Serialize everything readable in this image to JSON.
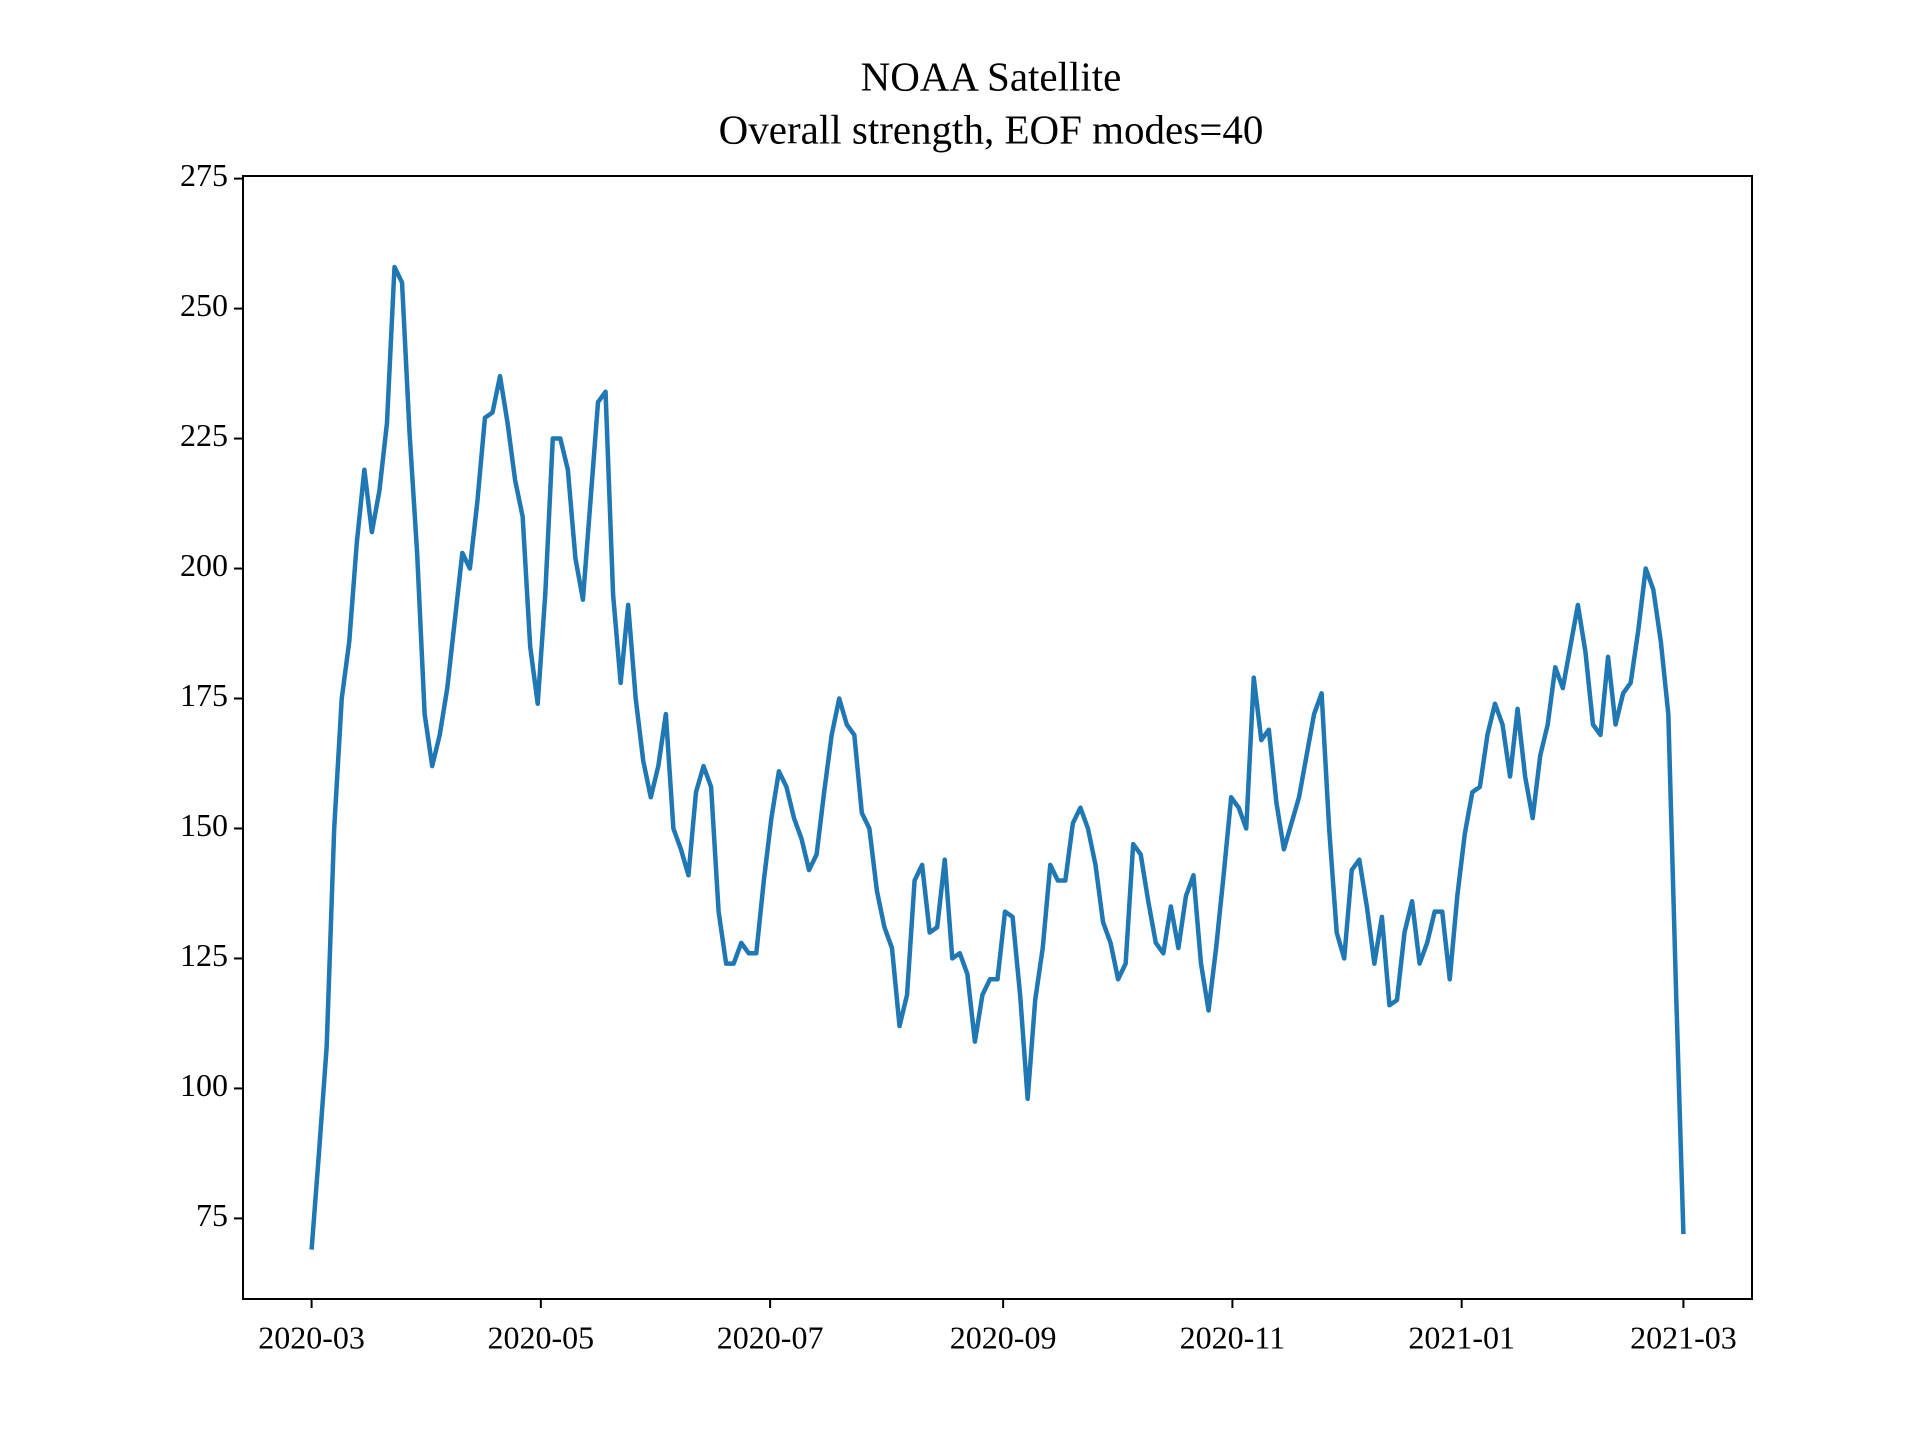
{
  "chart_data": {
    "type": "line",
    "title": "NOAA Satellite",
    "subtitle": "Overall strength, EOF modes=40",
    "xlim": [
      "2020-03",
      "2021-03"
    ],
    "xticks": [
      "2020-03",
      "2020-05",
      "2020-07",
      "2020-09",
      "2020-11",
      "2021-01",
      "2021-03"
    ],
    "ylim": [
      59.5,
      275.5
    ],
    "yticks": [
      75,
      100,
      125,
      150,
      175,
      200,
      225,
      250,
      275
    ],
    "grid": false,
    "series": [
      {
        "name": "Overall strength",
        "color": "#1f77b4",
        "values": [
          69,
          88,
          108,
          150,
          175,
          186,
          205,
          219,
          207,
          215,
          228,
          258,
          255,
          226,
          203,
          172,
          162,
          168,
          177,
          190,
          203,
          200,
          213,
          229,
          230,
          237,
          228,
          217,
          210,
          185,
          174,
          195,
          225,
          225,
          219,
          202,
          194,
          213,
          232,
          234,
          195,
          178,
          193,
          175,
          163,
          156,
          162,
          172,
          150,
          146,
          141,
          157,
          162,
          158,
          134,
          124,
          124,
          128,
          126,
          126,
          140,
          152,
          161,
          158,
          152,
          148,
          142,
          145,
          157,
          168,
          175,
          170,
          168,
          153,
          150,
          138,
          131,
          127,
          112,
          118,
          140,
          143,
          130,
          131,
          144,
          125,
          126,
          122,
          109,
          118,
          121,
          121,
          134,
          133,
          118,
          98,
          117,
          127,
          143,
          140,
          140,
          151,
          154,
          150,
          143,
          132,
          128,
          121,
          124,
          147,
          145,
          136,
          128,
          126,
          135,
          127,
          137,
          141,
          124,
          115,
          127,
          141,
          156,
          154,
          150,
          179,
          167,
          169,
          155,
          146,
          151,
          156,
          164,
          172,
          176,
          150,
          130,
          125,
          142,
          144,
          135,
          124,
          133,
          116,
          117,
          130,
          136,
          124,
          128,
          134,
          134,
          121,
          137,
          149,
          157,
          158,
          168,
          174,
          170,
          160,
          173,
          160,
          152,
          164,
          170,
          181,
          177,
          185,
          193,
          184,
          170,
          168,
          183,
          170,
          176,
          178,
          188,
          200,
          196,
          186,
          172,
          120,
          72
        ]
      }
    ]
  }
}
